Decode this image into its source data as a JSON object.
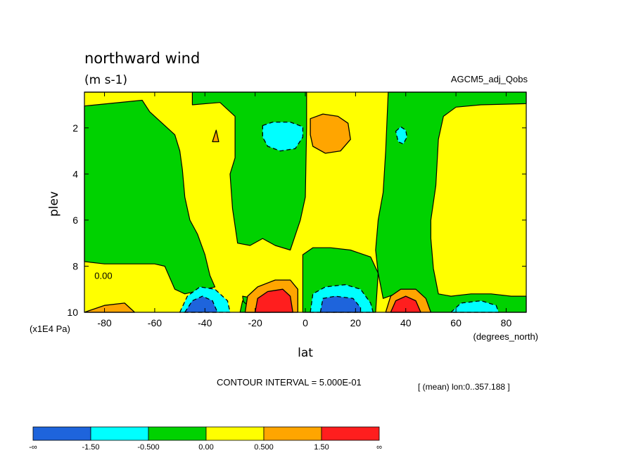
{
  "chart_data": {
    "type": "contour",
    "title": "northward wind",
    "units": "(m s-1)",
    "dataset": "AGCM5_adj_Qobs",
    "xlabel": "lat",
    "xunits": "(degrees_north)",
    "ylabel": "plev",
    "yunits": "(x1E4 Pa)",
    "x_ticks": [
      -80,
      -60,
      -40,
      -20,
      0,
      20,
      40,
      60,
      80
    ],
    "x_tick_labels": [
      "-80",
      "-60",
      "-40",
      "-20",
      "0",
      "20",
      "40",
      "60",
      "80"
    ],
    "xlim": [
      -88,
      88
    ],
    "y_ticks": [
      2,
      4,
      6,
      8,
      10
    ],
    "y_tick_labels": [
      "2",
      "4",
      "6",
      "8",
      "10"
    ],
    "ylim": [
      0.45,
      10
    ],
    "y_inverted": true,
    "contour_interval_text": "CONTOUR INTERVAL = 5.000E-01",
    "mean_note": "[ (mean) lon:0..357.188 ]",
    "zero_label": "0.00",
    "colorbar": {
      "colors": [
        "#1e64dc",
        "#00ffff",
        "#00d200",
        "#ffff00",
        "#ffa500",
        "#ff1e1e"
      ],
      "labels": [
        "-∞",
        "-1.50",
        "-0.500",
        "0.00",
        "0.500",
        "1.50",
        "∞"
      ]
    },
    "background_color": "#ffff00",
    "regions": [
      {
        "color": "#00d200",
        "pts": [
          [
            -88,
            0.45
          ],
          [
            -45,
            0.45
          ],
          [
            -45,
            1.0
          ],
          [
            -34,
            0.9
          ],
          [
            -28,
            1.5
          ],
          [
            -28,
            2.5
          ],
          [
            -28,
            3.3
          ],
          [
            -30,
            4.0
          ],
          [
            -29,
            5.5
          ],
          [
            -27,
            7.0
          ],
          [
            -22,
            7.1
          ],
          [
            -17,
            6.8
          ],
          [
            -12,
            7.1
          ],
          [
            -6,
            7.3
          ],
          [
            -2,
            6.0
          ],
          [
            0,
            5.0
          ],
          [
            0.5,
            2.0
          ],
          [
            0.5,
            0.45
          ],
          [
            -88,
            0.45
          ]
        ]
      },
      {
        "color": "#00d200",
        "pts": [
          [
            -88,
            1.05
          ],
          [
            -65,
            0.8
          ],
          [
            -62,
            1.3
          ],
          [
            -52,
            2.3
          ],
          [
            -50,
            3.0
          ],
          [
            -49,
            3.8
          ],
          [
            -48,
            5.0
          ],
          [
            -46,
            6.0
          ],
          [
            -43,
            6.6
          ],
          [
            -40,
            7.5
          ],
          [
            -38,
            8.4
          ],
          [
            -36,
            8.9
          ],
          [
            -40,
            9.0
          ],
          [
            -48,
            9.2
          ],
          [
            -52,
            9.0
          ],
          [
            -56,
            8.0
          ],
          [
            -60,
            7.9
          ],
          [
            -70,
            7.9
          ],
          [
            -80,
            7.9
          ],
          [
            -88,
            7.8
          ],
          [
            -88,
            1.05
          ]
        ]
      },
      {
        "color": "#00d200",
        "pts": [
          [
            -1,
            7.5
          ],
          [
            -1,
            10
          ],
          [
            28,
            10
          ],
          [
            29,
            8.3
          ],
          [
            26,
            7.6
          ],
          [
            18,
            7.3
          ],
          [
            10,
            7.2
          ],
          [
            3,
            7.2
          ],
          [
            -1,
            7.5
          ]
        ]
      },
      {
        "color": "#00d200",
        "pts": [
          [
            33,
            0.45
          ],
          [
            88,
            0.45
          ],
          [
            88,
            0.95
          ],
          [
            70,
            1.0
          ],
          [
            60,
            1.1
          ],
          [
            55,
            1.5
          ],
          [
            53,
            2.5
          ],
          [
            52,
            4.5
          ],
          [
            50,
            6.0
          ],
          [
            50,
            6.8
          ],
          [
            51,
            8.1
          ],
          [
            53,
            9.2
          ],
          [
            58,
            9.3
          ],
          [
            66,
            9.2
          ],
          [
            74,
            9.2
          ],
          [
            82,
            9.3
          ],
          [
            88,
            9.3
          ],
          [
            88,
            10
          ],
          [
            55,
            10
          ],
          [
            50,
            10
          ],
          [
            46,
            9.8
          ],
          [
            42,
            9.3
          ],
          [
            36,
            9.2
          ],
          [
            31,
            9.4
          ],
          [
            29,
            8.3
          ],
          [
            28,
            7.3
          ],
          [
            29,
            6.0
          ],
          [
            31,
            4.8
          ],
          [
            32,
            3.0
          ],
          [
            33,
            0.45
          ]
        ]
      },
      {
        "color": "#00d200",
        "pts": [
          [
            -14,
            10
          ],
          [
            -20,
            9.4
          ],
          [
            -25,
            9.3
          ],
          [
            -24,
            10
          ],
          [
            -14,
            10
          ]
        ]
      },
      {
        "color": "#00d200",
        "pts": [
          [
            -20,
            10
          ],
          [
            -25,
            9.5
          ],
          [
            -26,
            10
          ],
          [
            -20,
            10
          ]
        ]
      },
      {
        "color": "#00ffff",
        "pts": [
          [
            -50,
            10
          ],
          [
            -47,
            9.3
          ],
          [
            -42,
            8.9
          ],
          [
            -36,
            9.0
          ],
          [
            -31,
            9.5
          ],
          [
            -30,
            10
          ],
          [
            -50,
            10
          ]
        ]
      },
      {
        "color": "#00ffff",
        "pts": [
          [
            2,
            10
          ],
          [
            3,
            9.2
          ],
          [
            8,
            8.9
          ],
          [
            16,
            8.8
          ],
          [
            22,
            9.0
          ],
          [
            26,
            9.6
          ],
          [
            27,
            10
          ],
          [
            2,
            10
          ]
        ]
      },
      {
        "color": "#00ffff",
        "pts": [
          [
            -17,
            1.9
          ],
          [
            -13,
            1.75
          ],
          [
            -6,
            1.75
          ],
          [
            -1,
            1.95
          ],
          [
            -1,
            2.4
          ],
          [
            -4,
            2.9
          ],
          [
            -10,
            3.0
          ],
          [
            -15,
            2.8
          ],
          [
            -17,
            2.4
          ],
          [
            -17,
            1.9
          ]
        ]
      },
      {
        "color": "#00ffff",
        "pts": [
          [
            36,
            2.15
          ],
          [
            38,
            1.95
          ],
          [
            40,
            2.1
          ],
          [
            40.5,
            2.4
          ],
          [
            39,
            2.7
          ],
          [
            37,
            2.6
          ],
          [
            36,
            2.15
          ]
        ]
      },
      {
        "color": "#00ffff",
        "pts": [
          [
            58,
            10
          ],
          [
            62,
            9.6
          ],
          [
            70,
            9.5
          ],
          [
            76,
            9.7
          ],
          [
            77,
            10
          ],
          [
            58,
            10
          ]
        ]
      },
      {
        "color": "#1e64dc",
        "pts": [
          [
            -48,
            10
          ],
          [
            -45,
            9.5
          ],
          [
            -41,
            9.3
          ],
          [
            -37,
            9.5
          ],
          [
            -35,
            10
          ],
          [
            -48,
            10
          ]
        ]
      },
      {
        "color": "#1e64dc",
        "pts": [
          [
            6,
            10
          ],
          [
            7,
            9.4
          ],
          [
            12,
            9.3
          ],
          [
            19,
            9.4
          ],
          [
            22,
            9.8
          ],
          [
            22,
            10
          ],
          [
            6,
            10
          ]
        ]
      },
      {
        "color": "#ffa500",
        "pts": [
          [
            -24,
            10
          ],
          [
            -23,
            9.3
          ],
          [
            -19,
            8.9
          ],
          [
            -12,
            8.6
          ],
          [
            -6,
            8.6
          ],
          [
            -3,
            9.0
          ],
          [
            -3,
            10
          ],
          [
            -24,
            10
          ]
        ]
      },
      {
        "color": "#ffa500",
        "pts": [
          [
            32,
            10
          ],
          [
            34,
            9.3
          ],
          [
            38,
            9.0
          ],
          [
            44,
            9.0
          ],
          [
            48,
            9.4
          ],
          [
            50,
            10
          ],
          [
            32,
            10
          ]
        ]
      },
      {
        "color": "#ffa500",
        "pts": [
          [
            2,
            1.6
          ],
          [
            7,
            1.4
          ],
          [
            13,
            1.5
          ],
          [
            17,
            1.8
          ],
          [
            18,
            2.5
          ],
          [
            14,
            3.0
          ],
          [
            8,
            3.1
          ],
          [
            3,
            2.8
          ],
          [
            2,
            2.3
          ],
          [
            2,
            1.6
          ]
        ]
      },
      {
        "color": "#ffa500",
        "pts": [
          [
            -37,
            2.6
          ],
          [
            -35.5,
            2.1
          ],
          [
            -34.5,
            2.6
          ],
          [
            -37,
            2.6
          ]
        ]
      },
      {
        "color": "#ffa500",
        "pts": [
          [
            -88,
            10
          ],
          [
            -80,
            9.7
          ],
          [
            -72,
            9.6
          ],
          [
            -68,
            10
          ],
          [
            -88,
            10
          ]
        ]
      },
      {
        "color": "#ff1e1e",
        "pts": [
          [
            -20,
            10
          ],
          [
            -19,
            9.4
          ],
          [
            -15,
            9.1
          ],
          [
            -9,
            9.0
          ],
          [
            -6,
            9.3
          ],
          [
            -5,
            10
          ],
          [
            -20,
            10
          ]
        ]
      },
      {
        "color": "#ff1e1e",
        "pts": [
          [
            34,
            10
          ],
          [
            36,
            9.5
          ],
          [
            40,
            9.3
          ],
          [
            44,
            9.5
          ],
          [
            46,
            10
          ],
          [
            34,
            10
          ]
        ]
      }
    ]
  }
}
